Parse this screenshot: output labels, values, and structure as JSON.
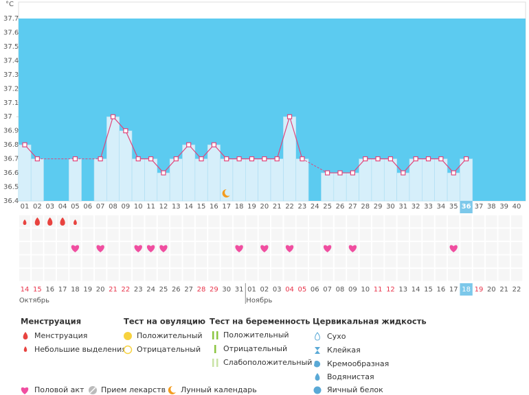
{
  "chart_data": {
    "type": "line",
    "y_label": "°C",
    "ylim": [
      36.4,
      37.7
    ],
    "yticks": [
      36.4,
      36.5,
      36.6,
      36.7,
      36.8,
      36.9,
      37,
      37.1,
      37.2,
      37.3,
      37.4,
      37.5,
      37.6,
      37.7
    ],
    "categories": [
      "01",
      "02",
      "03",
      "04",
      "05",
      "06",
      "07",
      "08",
      "09",
      "10",
      "11",
      "12",
      "13",
      "14",
      "15",
      "16",
      "17",
      "18",
      "19",
      "20",
      "21",
      "22",
      "23",
      "24",
      "25",
      "26",
      "27",
      "28",
      "29",
      "30",
      "31",
      "32",
      "33",
      "34",
      "35",
      "36",
      "37",
      "38",
      "39",
      "40"
    ],
    "values": [
      36.8,
      36.7,
      null,
      null,
      36.7,
      null,
      36.7,
      37,
      36.9,
      36.7,
      36.7,
      36.6,
      36.7,
      36.8,
      36.7,
      36.8,
      36.7,
      36.7,
      36.7,
      36.7,
      36.7,
      37,
      36.7,
      null,
      36.6,
      36.6,
      36.6,
      36.7,
      36.7,
      36.7,
      36.6,
      36.7,
      36.7,
      36.7,
      36.6,
      36.7,
      null,
      null,
      null,
      null
    ],
    "color": "#e0457b",
    "bar_color": "#d6effa",
    "background": "#5ccbf0",
    "today": 36,
    "menstruation": {
      "heavy": [
        2,
        3,
        4
      ],
      "light": [
        1,
        5
      ]
    },
    "intercourse": [
      5,
      7,
      10,
      11,
      12,
      18,
      20,
      22,
      25,
      27,
      35
    ],
    "lunar": [
      17
    ],
    "dates": [
      {
        "text": "14",
        "red": true
      },
      {
        "text": "15",
        "red": true
      },
      {
        "text": "16",
        "red": false
      },
      {
        "text": "17",
        "red": false
      },
      {
        "text": "18",
        "red": false
      },
      {
        "text": "19",
        "red": false
      },
      {
        "text": "20",
        "red": false
      },
      {
        "text": "21",
        "red": true
      },
      {
        "text": "22",
        "red": true
      },
      {
        "text": "23",
        "red": false
      },
      {
        "text": "24",
        "red": false
      },
      {
        "text": "25",
        "red": false
      },
      {
        "text": "26",
        "red": false
      },
      {
        "text": "27",
        "red": false
      },
      {
        "text": "28",
        "red": true
      },
      {
        "text": "29",
        "red": true
      },
      {
        "text": "30",
        "red": false
      },
      {
        "text": "31",
        "red": false
      },
      {
        "text": "01",
        "red": false
      },
      {
        "text": "02",
        "red": false
      },
      {
        "text": "03",
        "red": false
      },
      {
        "text": "04",
        "red": true
      },
      {
        "text": "05",
        "red": true
      },
      {
        "text": "06",
        "red": false
      },
      {
        "text": "07",
        "red": false
      },
      {
        "text": "08",
        "red": false
      },
      {
        "text": "09",
        "red": false
      },
      {
        "text": "10",
        "red": false
      },
      {
        "text": "11",
        "red": true
      },
      {
        "text": "12",
        "red": true
      },
      {
        "text": "13",
        "red": false
      },
      {
        "text": "14",
        "red": false
      },
      {
        "text": "15",
        "red": false
      },
      {
        "text": "16",
        "red": false
      },
      {
        "text": "17",
        "red": false
      },
      {
        "text": "18",
        "red": true
      },
      {
        "text": "19",
        "red": true
      },
      {
        "text": "20",
        "red": false
      },
      {
        "text": "21",
        "red": false
      },
      {
        "text": "22",
        "red": false
      }
    ],
    "months": [
      {
        "label": "Октябрь",
        "start": 1
      },
      {
        "label": "Ноябрь",
        "start": 19
      }
    ]
  },
  "legend": {
    "menstruation": {
      "title": "Менструация",
      "items": [
        "Менструация",
        "Небольшие выделения"
      ]
    },
    "ovulation": {
      "title": "Тест на овуляцию",
      "items": [
        "Положительный",
        "Отрицательный"
      ]
    },
    "pregnancy": {
      "title": "Тест на беременность",
      "items": [
        "Положительный",
        "Отрицательный",
        "Слабоположительный"
      ]
    },
    "cervical": {
      "title": "Цервикальная жидкость",
      "items": [
        "Сухо",
        "Клейкая",
        "Кремообразная",
        "Водянистая",
        "Яичный белок"
      ]
    },
    "other": [
      "Половой акт",
      "Прием лекарств",
      "Лунный календарь"
    ]
  }
}
